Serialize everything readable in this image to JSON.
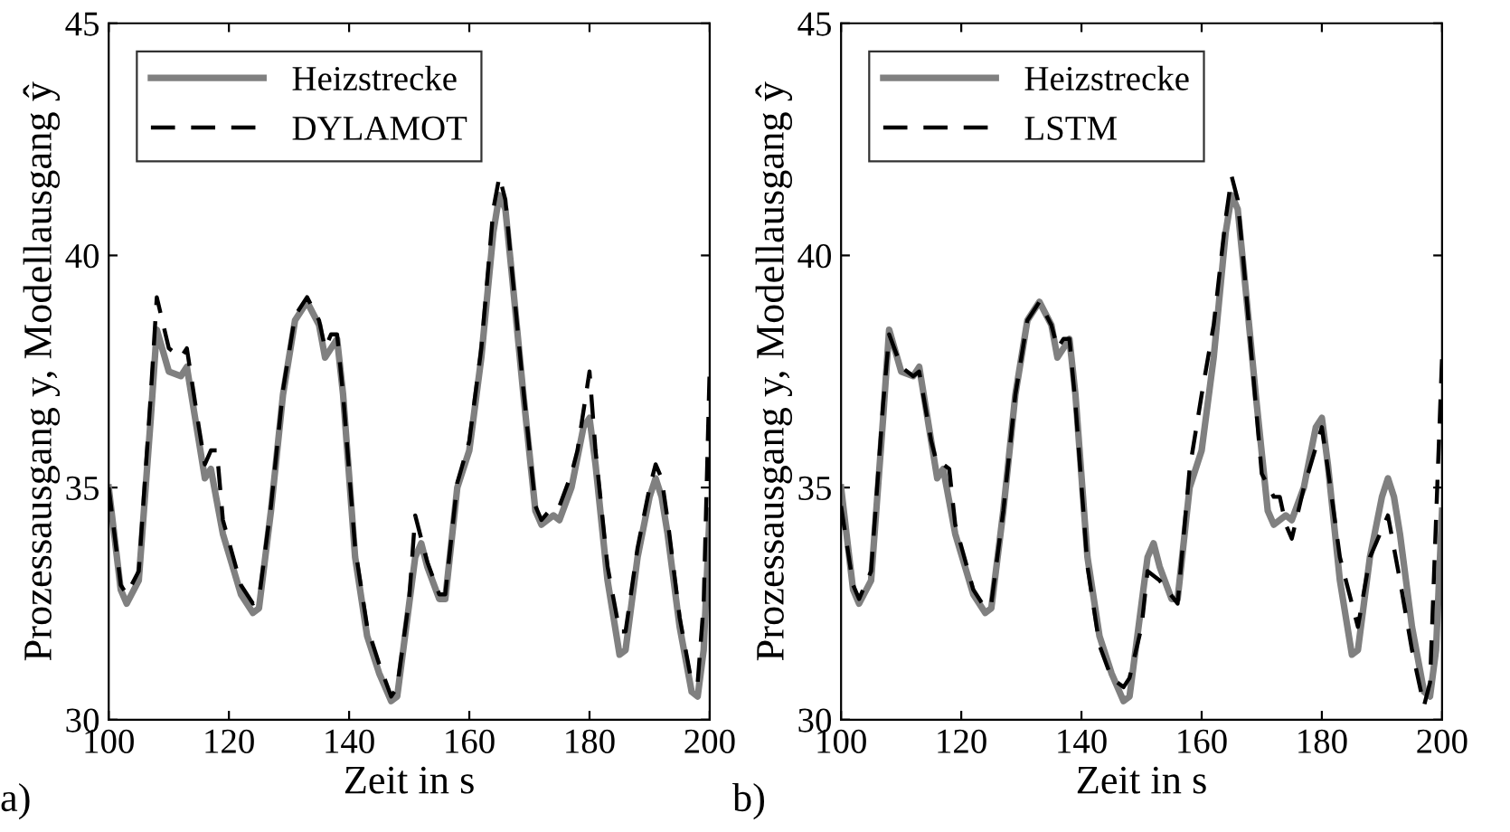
{
  "chart_data": [
    {
      "type": "line",
      "xlabel": "Zeit in s",
      "ylabel": "Prozessausgang y, Modellausgang ŷ",
      "annotations": [
        "a)"
      ],
      "xlim": [
        100,
        200
      ],
      "ylim": [
        30,
        45
      ],
      "xticks": [
        100,
        120,
        140,
        160,
        180,
        200
      ],
      "yticks": [
        30,
        35,
        40,
        45
      ],
      "legend": "top left",
      "grid": false,
      "series": [
        {
          "name": "Heizstrecke",
          "color": "#808080",
          "line_style": "solid",
          "x": [
            100,
            102,
            103,
            105,
            107,
            108,
            110,
            112,
            113,
            115,
            116,
            117,
            119,
            122,
            124,
            125,
            127,
            129,
            131,
            133,
            135,
            136,
            137,
            138,
            139,
            141,
            143,
            145,
            147,
            148,
            150,
            151,
            152,
            153,
            155,
            156,
            158,
            160,
            162,
            164,
            165,
            166,
            167,
            169,
            171,
            172,
            174,
            175,
            177,
            179,
            180,
            181,
            183,
            185,
            186,
            188,
            190,
            191,
            192,
            193,
            195,
            197,
            198,
            199,
            200
          ],
          "values": [
            35.0,
            32.8,
            32.5,
            33.0,
            36.5,
            38.4,
            37.5,
            37.4,
            37.6,
            36.0,
            35.2,
            35.4,
            34.0,
            32.7,
            32.3,
            32.4,
            34.5,
            37.0,
            38.6,
            39.0,
            38.5,
            37.8,
            38.0,
            38.2,
            37.0,
            33.5,
            31.8,
            31.0,
            30.4,
            30.5,
            32.5,
            33.5,
            33.8,
            33.3,
            32.6,
            32.6,
            35.0,
            35.8,
            37.8,
            40.5,
            41.3,
            41.0,
            39.7,
            37.0,
            34.5,
            34.2,
            34.4,
            34.3,
            35.0,
            36.3,
            36.5,
            35.5,
            33.0,
            31.4,
            31.5,
            33.5,
            34.8,
            35.2,
            34.8,
            34.0,
            32.0,
            30.6,
            30.5,
            31.5,
            34.5
          ]
        },
        {
          "name": "DYLAMOT",
          "color": "#000000",
          "line_style": "dashed",
          "x": [
            100,
            102,
            103,
            105,
            107,
            108,
            110,
            112,
            113,
            115,
            116,
            117,
            118,
            119,
            122,
            124,
            125,
            127,
            129,
            131,
            133,
            135,
            136,
            137,
            138,
            139,
            141,
            143,
            145,
            147,
            148,
            150,
            151,
            152,
            153,
            155,
            156,
            158,
            160,
            162,
            164,
            165,
            166,
            167,
            169,
            171,
            172,
            174,
            175,
            177,
            178,
            180,
            181,
            183,
            185,
            186,
            188,
            190,
            191,
            192,
            193,
            195,
            197,
            198,
            199,
            200
          ],
          "values": [
            35.0,
            32.9,
            32.7,
            33.2,
            37.0,
            39.1,
            38.0,
            37.8,
            38.0,
            36.3,
            35.5,
            35.8,
            35.8,
            34.3,
            32.9,
            32.5,
            32.6,
            34.6,
            37.1,
            38.7,
            39.1,
            38.6,
            38.0,
            38.3,
            38.3,
            37.0,
            33.7,
            32.0,
            31.2,
            30.5,
            30.7,
            32.6,
            34.4,
            33.9,
            33.4,
            32.7,
            32.7,
            35.1,
            36.0,
            38.0,
            41.0,
            41.7,
            41.2,
            39.8,
            37.1,
            34.6,
            34.3,
            34.6,
            34.6,
            35.3,
            35.8,
            37.5,
            35.8,
            33.3,
            31.9,
            31.9,
            33.7,
            35.0,
            35.5,
            35.2,
            34.3,
            32.2,
            30.8,
            30.8,
            32.5,
            37.6
          ]
        }
      ]
    },
    {
      "type": "line",
      "xlabel": "Zeit in s",
      "ylabel": "Prozessausgang y, Modellausgang ŷ",
      "annotations": [
        "b)"
      ],
      "xlim": [
        100,
        200
      ],
      "ylim": [
        30,
        45
      ],
      "xticks": [
        100,
        120,
        140,
        160,
        180,
        200
      ],
      "yticks": [
        30,
        35,
        40,
        45
      ],
      "legend": "top left",
      "grid": false,
      "series": [
        {
          "name": "Heizstrecke",
          "color": "#808080",
          "line_style": "solid",
          "x": [
            100,
            102,
            103,
            105,
            107,
            108,
            110,
            112,
            113,
            115,
            116,
            117,
            119,
            122,
            124,
            125,
            127,
            129,
            131,
            133,
            135,
            136,
            137,
            138,
            139,
            141,
            143,
            145,
            147,
            148,
            150,
            151,
            152,
            153,
            155,
            156,
            158,
            160,
            162,
            164,
            165,
            166,
            167,
            169,
            171,
            172,
            174,
            175,
            177,
            179,
            180,
            181,
            183,
            185,
            186,
            188,
            190,
            191,
            192,
            193,
            195,
            197,
            198,
            199,
            200
          ],
          "values": [
            35.0,
            32.8,
            32.5,
            33.0,
            36.5,
            38.4,
            37.5,
            37.4,
            37.6,
            36.0,
            35.2,
            35.4,
            34.0,
            32.7,
            32.3,
            32.4,
            34.5,
            37.0,
            38.6,
            39.0,
            38.5,
            37.8,
            38.0,
            38.2,
            37.0,
            33.5,
            31.8,
            31.0,
            30.4,
            30.5,
            32.5,
            33.5,
            33.8,
            33.3,
            32.6,
            32.6,
            35.0,
            35.8,
            37.8,
            40.5,
            41.3,
            41.0,
            39.7,
            37.0,
            34.5,
            34.2,
            34.4,
            34.3,
            35.0,
            36.3,
            36.5,
            35.5,
            33.0,
            31.4,
            31.5,
            33.5,
            34.8,
            35.2,
            34.8,
            34.0,
            32.0,
            30.6,
            30.5,
            31.5,
            34.5
          ]
        },
        {
          "name": "LSTM",
          "color": "#000000",
          "line_style": "dashed",
          "x": [
            100,
            102,
            103,
            105,
            107,
            108,
            110,
            112,
            113,
            115,
            116,
            117,
            118,
            119,
            122,
            124,
            125,
            127,
            129,
            131,
            133,
            135,
            136,
            137,
            138,
            139,
            141,
            143,
            145,
            147,
            148,
            150,
            151,
            153,
            156,
            158,
            160,
            162,
            164,
            165,
            166,
            167,
            169,
            170,
            172,
            173,
            174,
            175,
            177,
            180,
            181,
            183,
            186,
            188,
            191,
            193,
            195,
            197,
            198,
            200
          ],
          "values": [
            34.6,
            32.9,
            32.6,
            33.2,
            36.8,
            38.3,
            37.6,
            37.4,
            37.5,
            36.0,
            35.5,
            35.5,
            35.4,
            34.2,
            32.8,
            32.4,
            32.5,
            34.5,
            37.0,
            38.6,
            39.0,
            38.5,
            38.0,
            38.2,
            38.2,
            36.8,
            33.3,
            31.6,
            30.9,
            30.7,
            30.9,
            32.0,
            33.2,
            33.0,
            32.5,
            35.4,
            37.0,
            38.5,
            40.8,
            41.7,
            41.2,
            39.8,
            36.8,
            35.3,
            34.8,
            34.8,
            34.2,
            33.9,
            35.0,
            36.3,
            35.4,
            33.5,
            32.0,
            33.5,
            34.4,
            33.0,
            31.5,
            30.3,
            30.8,
            37.8
          ]
        }
      ]
    }
  ]
}
